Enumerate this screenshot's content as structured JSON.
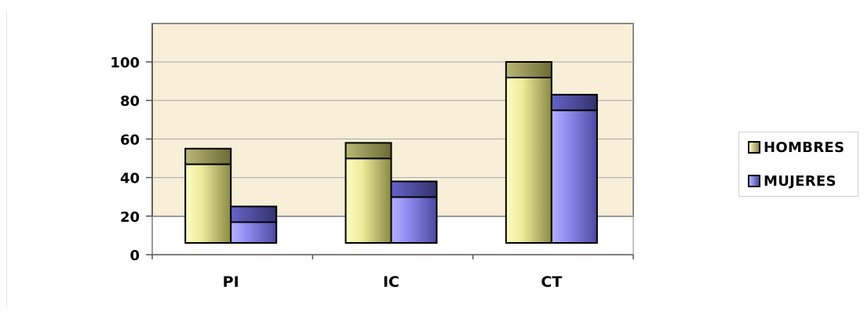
{
  "colors": {
    "plot_background": "#f8efd8",
    "hombres": "#e3e293",
    "hombres_top": "#9b9a55",
    "mujeres": "#8c8ae6",
    "mujeres_top": "#4f4ea0",
    "gridline": "#a0a0a0"
  },
  "chart_data": {
    "type": "bar",
    "categories": [
      "PI",
      "IC",
      "CT"
    ],
    "series": [
      {
        "name": "HOMBRES",
        "values": [
          55,
          58,
          100
        ]
      },
      {
        "name": "MUJERES",
        "values": [
          25,
          38,
          83
        ]
      }
    ],
    "ylim": [
      0,
      120
    ],
    "yticks": [
      "0",
      "20",
      "40",
      "60",
      "80",
      "100"
    ],
    "grid": true,
    "legend": "right",
    "style": "3d-clustered-bar"
  }
}
